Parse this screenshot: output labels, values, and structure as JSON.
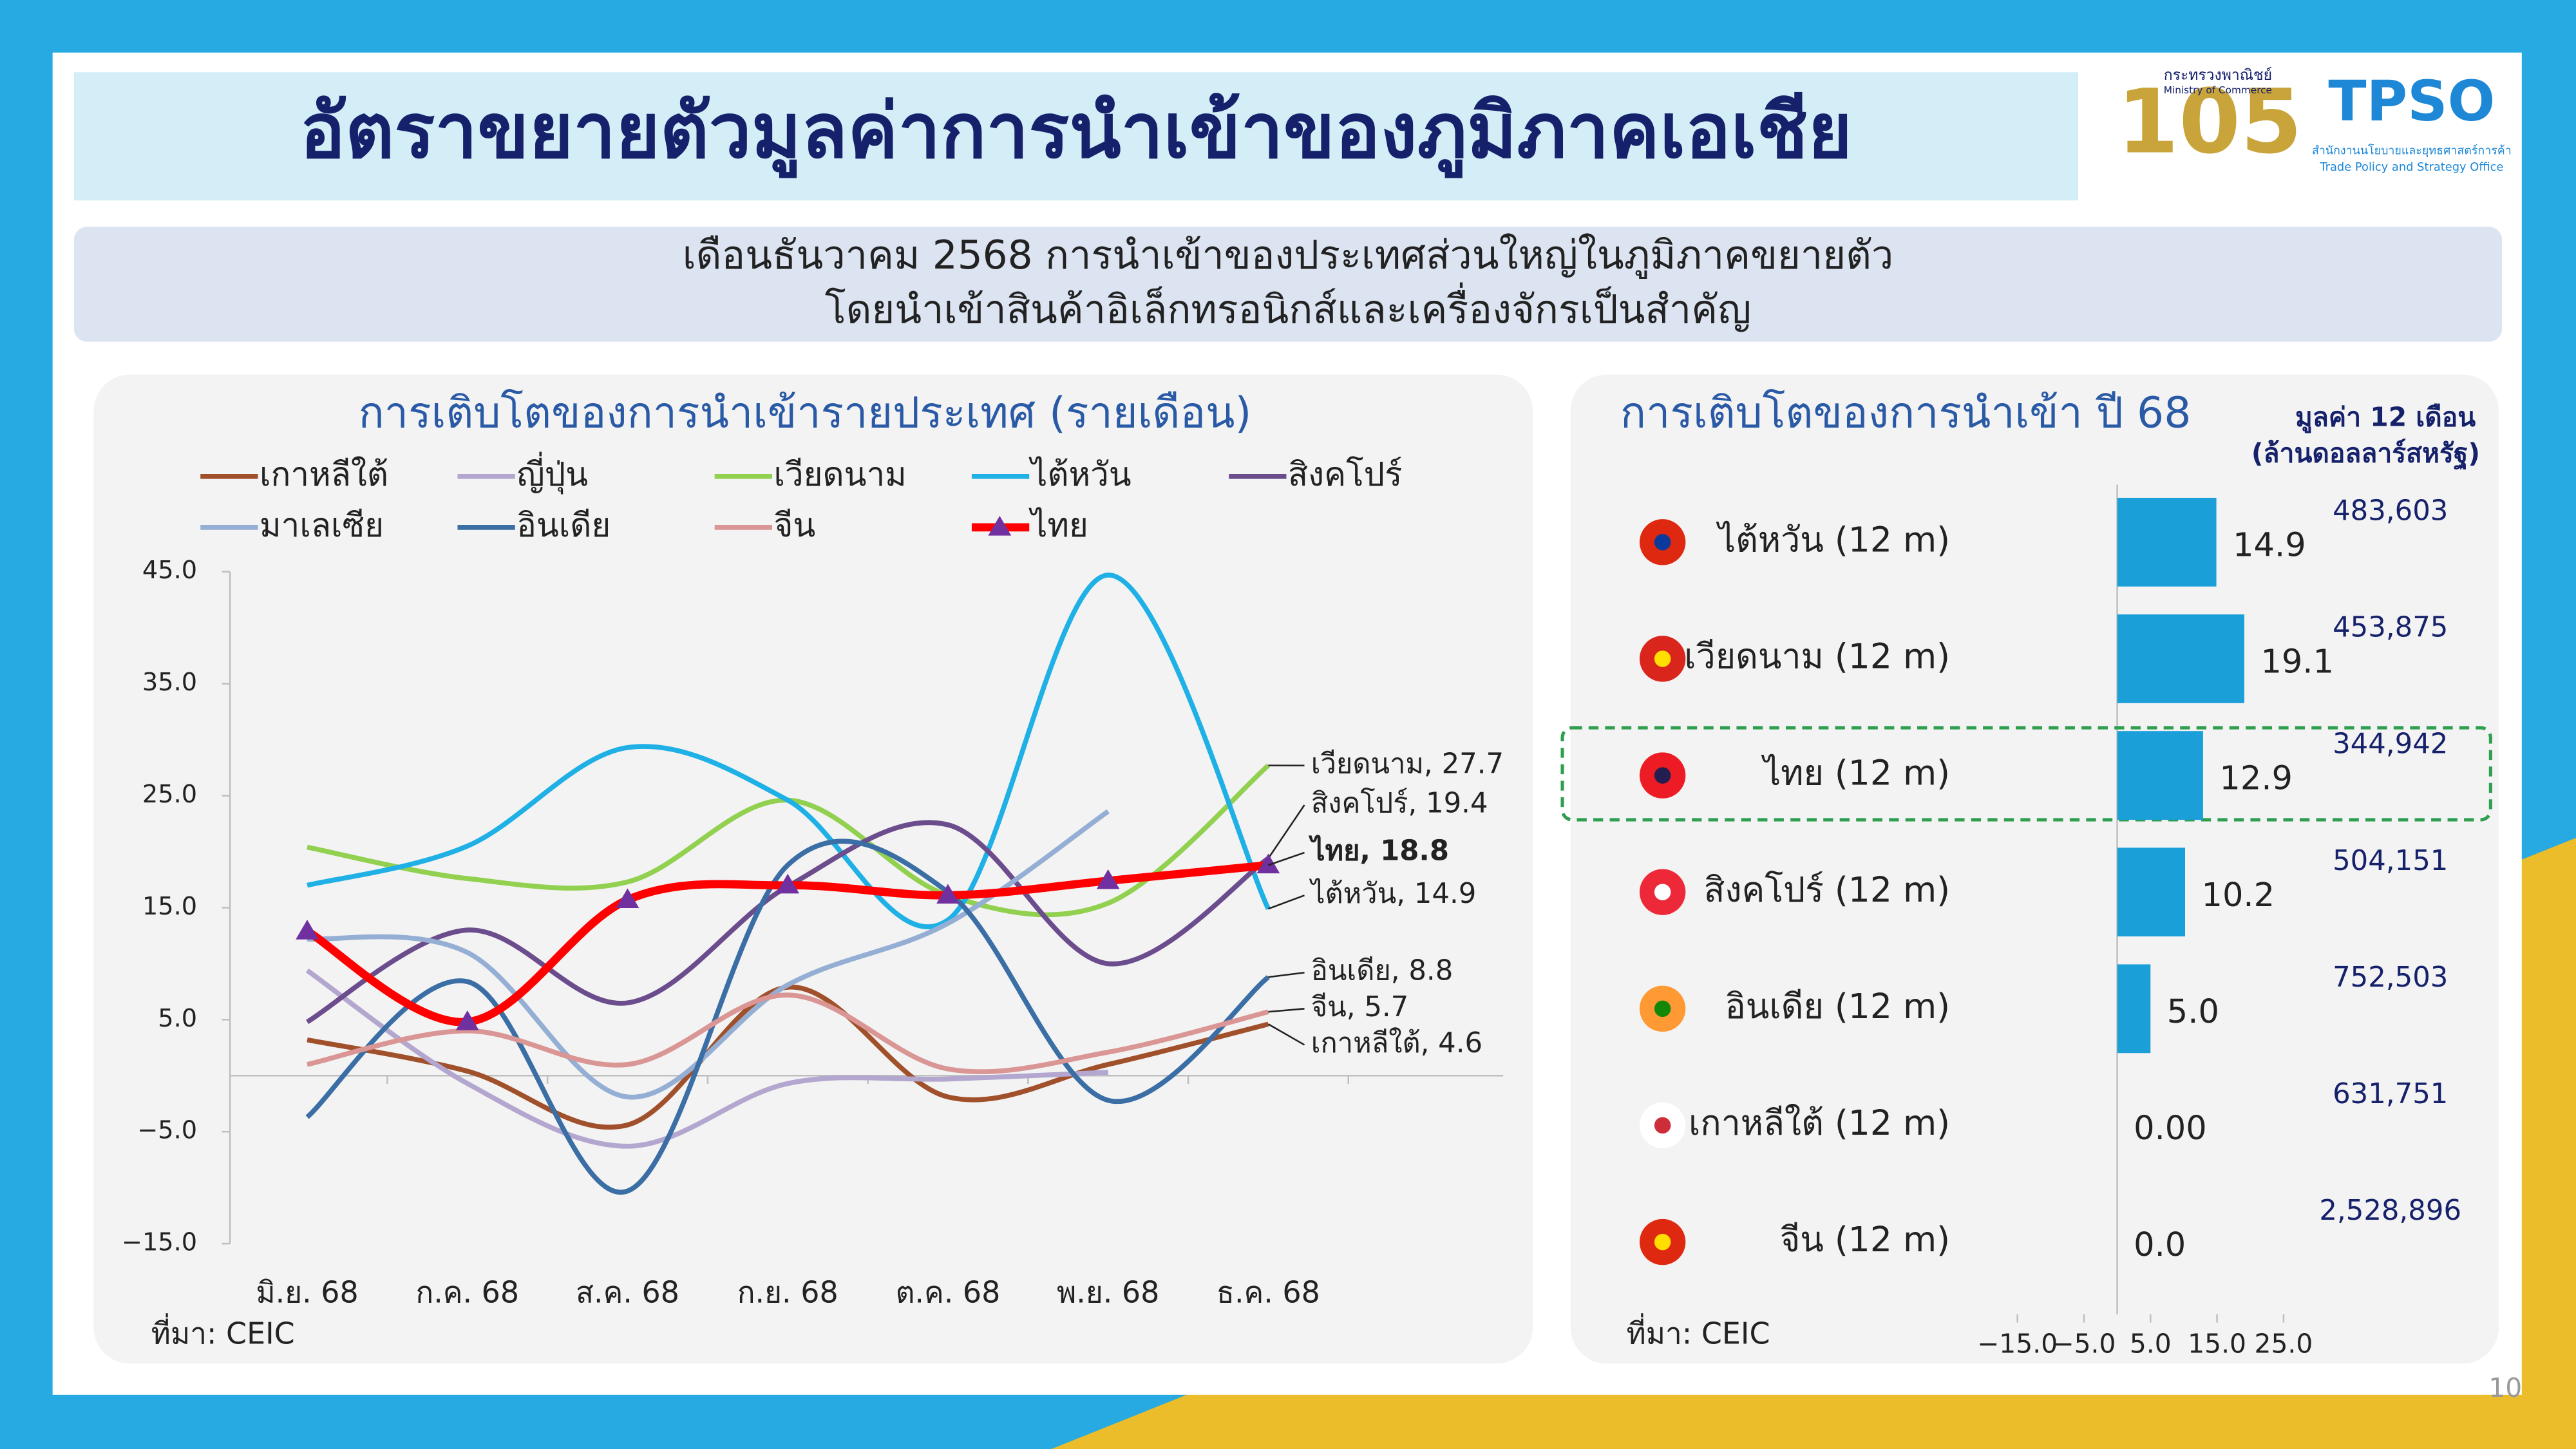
{
  "header": {
    "title": "อัตราขยายตัวมูลค่าการนำเข้าของภูมิภาคเอเชีย"
  },
  "logo": {
    "ministry_th": "กระทรวงพาณิชย์",
    "ministry_en": "Ministry of Commerce",
    "anniversary": "105",
    "tpso": "TPSO",
    "office_th": "สำนักงานนโยบายและยุทธศาสตร์การค้า",
    "office_en": "Trade Policy and Strategy Office"
  },
  "summary": [
    "เดือนธันวาคม 2568 การนำเข้าของประเทศส่วนใหญ่ในภูมิภาคขยายตัว",
    "โดยนำเข้าสินค้าอิเล็กทรอนิกส์และเครื่องจักรเป็นสำคัญ"
  ],
  "page_number": "10",
  "chart_data": [
    {
      "type": "line",
      "title": "การเติบโตของการนำเข้ารายประเทศ (รายเดือน)",
      "categories": [
        "มิ.ย. 68",
        "ก.ค. 68",
        "ส.ค. 68",
        "ก.ย. 68",
        "ต.ค. 68",
        "พ.ย. 68",
        "ธ.ค. 68"
      ],
      "ylim": [
        -15,
        45
      ],
      "yticks": [
        {
          "value": -15,
          "label": "−15.0"
        },
        {
          "value": -5,
          "label": "−5.0"
        },
        {
          "value": 5,
          "label": "5.0"
        },
        {
          "value": 15,
          "label": "15.0"
        },
        {
          "value": 25,
          "label": "25.0"
        },
        {
          "value": 35,
          "label": "35.0"
        },
        {
          "value": 45,
          "label": "45.0"
        }
      ],
      "series": [
        {
          "name": "เกาหลีใต้",
          "color": "#a0502a",
          "values": [
            3.2,
            0.4,
            -4.4,
            7.9,
            -1.9,
            1.0,
            4.6
          ],
          "end_label": "เกาหลีใต้, 4.6"
        },
        {
          "name": "ญี่ปุ่น",
          "color": "#b3a6cf",
          "values": [
            9.4,
            -0.7,
            -6.3,
            -0.7,
            -0.3,
            0.3,
            null
          ]
        },
        {
          "name": "เวียดนาม",
          "color": "#92d050",
          "values": [
            20.4,
            17.6,
            17.3,
            24.6,
            16.1,
            15.4,
            27.7
          ],
          "end_label": "เวียดนาม, 27.7"
        },
        {
          "name": "ไต้หวัน",
          "color": "#1fb0e6",
          "values": [
            17.0,
            20.5,
            29.3,
            24.6,
            13.9,
            44.7,
            14.9
          ],
          "end_label": "ไต้หวัน, 14.9"
        },
        {
          "name": "สิงคโปร์",
          "color": "#6b4c8c",
          "values": [
            4.8,
            13.0,
            6.5,
            16.9,
            22.4,
            10.0,
            19.4
          ],
          "end_label": "สิงคโปร์, 19.4"
        },
        {
          "name": "มาเลเซีย",
          "color": "#94aed4",
          "values": [
            12.2,
            11.0,
            -1.9,
            8.1,
            13.6,
            23.6,
            null
          ]
        },
        {
          "name": "อินเดีย",
          "color": "#3a6ea5",
          "values": [
            -3.7,
            8.4,
            -10.3,
            18.8,
            16.4,
            -2.2,
            8.8
          ],
          "end_label": "อินเดีย, 8.8"
        },
        {
          "name": "จีน",
          "color": "#d99694",
          "values": [
            1.0,
            4.0,
            1.0,
            7.2,
            0.6,
            2.1,
            5.7
          ],
          "end_label": "จีน, 5.7"
        },
        {
          "name": "ไทย",
          "color": "#ff0000",
          "values": [
            12.9,
            4.8,
            15.7,
            17.0,
            16.1,
            17.4,
            18.8
          ],
          "end_label": "ไทย, 18.8",
          "end_label_bold": true,
          "marker": "triangle",
          "marker_color": "#7030a0"
        }
      ],
      "source": "ที่มา: CEIC"
    },
    {
      "type": "bar",
      "orientation": "horizontal",
      "title": "การเติบโตของการนำเข้า ปี 68",
      "categories": [
        "ไต้หวัน (12 m)",
        "เวียดนาม (12 m)",
        "ไทย (12 m)",
        "สิงคโปร์ (12 m)",
        "อินเดีย (12 m)",
        "เกาหลีใต้ (12 m)",
        "จีน (12 m)"
      ],
      "values": [
        14.9,
        19.1,
        12.9,
        10.2,
        5.0,
        0,
        0
      ],
      "value_labels": [
        "14.9",
        "19.1",
        "12.9",
        "10.2",
        "5.0",
        "0.00",
        "0.0"
      ],
      "color": "#1a9fd9",
      "xlim": [
        -15,
        25
      ],
      "xticks": [
        {
          "value": -15,
          "label": "−15.0"
        },
        {
          "value": -5,
          "label": "−5.0"
        },
        {
          "value": 5,
          "label": "5.0"
        },
        {
          "value": 15,
          "label": "15.0"
        },
        {
          "value": 25,
          "label": "25.0"
        }
      ],
      "side_column": {
        "title": "มูลค่า 12 เดือน",
        "unit": "(ล้านดอลลาร์สหรัฐ)",
        "values": [
          "483,603",
          "453,875",
          "344,942",
          "504,151",
          "752,503",
          "631,751",
          "2,528,896"
        ]
      },
      "highlight": "ไทย (12 m)",
      "source": "ที่มา: CEIC"
    }
  ]
}
